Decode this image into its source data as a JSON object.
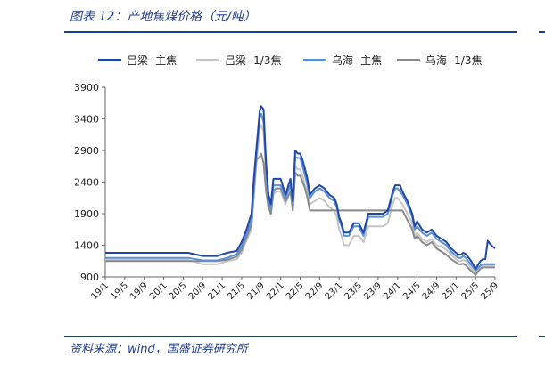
{
  "title": "图表 12：产地焦煤价格（元/吨）",
  "source": "资料来源：wind，国盛证券研究所",
  "chart_data": {
    "type": "line",
    "title": "产地焦煤价格（元/吨）",
    "xlabel": "",
    "ylabel": "",
    "ylim": [
      900,
      3900
    ],
    "yticks": [
      900,
      1400,
      1900,
      2400,
      2900,
      3400,
      3900
    ],
    "xlim": [
      0,
      80
    ],
    "xtick_labels": [
      "19/1",
      "19/5",
      "19/9",
      "20/1",
      "20/5",
      "20/9",
      "21/1",
      "21/5",
      "21/9",
      "22/1",
      "22/5",
      "22/9",
      "23/1",
      "23/5",
      "23/9",
      "24/1",
      "24/5",
      "24/9",
      "25/1",
      "25/5",
      "25/9"
    ],
    "xtick_positions": [
      0,
      4,
      8,
      12,
      16,
      20,
      24,
      28,
      32,
      36,
      40,
      44,
      48,
      52,
      56,
      60,
      64,
      68,
      72,
      76,
      80
    ],
    "grid": false,
    "legend_position": "top",
    "series": [
      {
        "name": "吕梁 -主焦",
        "color": "#1f47a6",
        "x": [
          0,
          5,
          10,
          15,
          17,
          20,
          23,
          25,
          27,
          28,
          29,
          30,
          30.5,
          31,
          31.7,
          32,
          32.5,
          33,
          33.5,
          34,
          34.5,
          35,
          36,
          37,
          38,
          38.5,
          39,
          39.5,
          40,
          40.5,
          41,
          41.5,
          42,
          43,
          44,
          45,
          46,
          47,
          47.5,
          48,
          48.5,
          49,
          50,
          51,
          52,
          53,
          54,
          55,
          56,
          57,
          58,
          59,
          59.5,
          60,
          60.5,
          61,
          62,
          63,
          63.5,
          64,
          65,
          66,
          67,
          68,
          69,
          70,
          71,
          72,
          72.5,
          73,
          73.5,
          74,
          75,
          76,
          77,
          77.5,
          78,
          78.5,
          79,
          79.5,
          80
        ],
        "y": [
          1280,
          1280,
          1280,
          1280,
          1280,
          1230,
          1230,
          1280,
          1310,
          1450,
          1650,
          1900,
          2450,
          2900,
          3530,
          3600,
          3550,
          2700,
          2200,
          2050,
          2450,
          2450,
          2450,
          2200,
          2450,
          2100,
          2900,
          2850,
          2850,
          2750,
          2600,
          2450,
          2200,
          2300,
          2350,
          2300,
          2200,
          2150,
          2050,
          1850,
          1750,
          1600,
          1600,
          1750,
          1750,
          1600,
          1900,
          1900,
          1900,
          1900,
          1950,
          2250,
          2350,
          2350,
          2350,
          2250,
          2100,
          1900,
          1700,
          1780,
          1650,
          1600,
          1650,
          1550,
          1500,
          1450,
          1350,
          1280,
          1250,
          1250,
          1280,
          1260,
          1160,
          1030,
          1150,
          1180,
          1180,
          1470,
          1420,
          1380,
          1350
        ]
      },
      {
        "name": "吕梁 -1/3焦",
        "color": "#c5c5c5",
        "x": [
          0,
          5,
          10,
          15,
          17,
          20,
          23,
          25,
          27,
          28,
          29,
          30,
          30.5,
          31,
          31.7,
          32,
          32.5,
          33,
          33.5,
          34,
          34.5,
          35,
          36,
          37,
          38,
          38.5,
          39,
          39.5,
          40,
          40.5,
          41,
          41.5,
          42,
          43,
          44,
          45,
          46,
          47,
          47.5,
          48,
          48.5,
          49,
          50,
          51,
          52,
          53,
          54,
          55,
          56,
          57,
          58,
          59,
          59.5,
          60,
          60.5,
          61,
          62,
          63,
          63.5,
          64,
          65,
          66,
          67,
          68,
          69,
          70,
          71,
          72,
          72.5,
          73,
          73.5,
          74,
          75,
          76,
          77,
          77.5,
          78,
          78.5,
          79,
          79.5,
          80
        ],
        "y": [
          1170,
          1170,
          1170,
          1170,
          1170,
          1100,
          1100,
          1150,
          1180,
          1280,
          1480,
          1650,
          2150,
          2650,
          3250,
          3300,
          3200,
          2500,
          2050,
          1900,
          2200,
          2250,
          2250,
          2050,
          2250,
          1950,
          2650,
          2600,
          2600,
          2500,
          2350,
          2250,
          2050,
          2100,
          2150,
          2100,
          2000,
          1950,
          1850,
          1650,
          1550,
          1400,
          1400,
          1550,
          1550,
          1450,
          1700,
          1700,
          1700,
          1700,
          1750,
          2050,
          2150,
          2150,
          2100,
          2050,
          1900,
          1750,
          1550,
          1600,
          1500,
          1450,
          1500,
          1400,
          1380,
          1330,
          1250,
          1180,
          1150,
          1150,
          1170,
          1150,
          1050,
          950,
          1050,
          1080,
          1080,
          1080,
          1080,
          1080,
          1080
        ]
      },
      {
        "name": "乌海 -主焦",
        "color": "#5b8fd8",
        "x": [
          0,
          5,
          10,
          15,
          17,
          20,
          23,
          25,
          27,
          28,
          29,
          30,
          30.5,
          31,
          31.7,
          32,
          32.5,
          33,
          33.5,
          34,
          34.5,
          35,
          36,
          37,
          38,
          38.5,
          39,
          39.5,
          40,
          40.5,
          41,
          41.5,
          42,
          43,
          44,
          45,
          46,
          47,
          47.5,
          48,
          48.5,
          49,
          50,
          51,
          52,
          53,
          54,
          55,
          56,
          57,
          58,
          59,
          59.5,
          60,
          60.5,
          61,
          62,
          63,
          63.5,
          64,
          65,
          66,
          67,
          68,
          69,
          70,
          71,
          72,
          72.5,
          73,
          73.5,
          74,
          75,
          76,
          77,
          77.5,
          78,
          78.5,
          79,
          79.5,
          80
        ],
        "y": [
          1200,
          1200,
          1200,
          1200,
          1200,
          1160,
          1160,
          1200,
          1260,
          1380,
          1580,
          1800,
          2350,
          2800,
          3420,
          3480,
          3350,
          2600,
          2100,
          1980,
          2350,
          2350,
          2350,
          2150,
          2350,
          2050,
          2800,
          2780,
          2780,
          2650,
          2500,
          2350,
          2150,
          2250,
          2300,
          2250,
          2150,
          2100,
          2000,
          1800,
          1700,
          1550,
          1550,
          1700,
          1700,
          1550,
          1850,
          1850,
          1850,
          1850,
          1900,
          2200,
          2300,
          2300,
          2250,
          2200,
          2050,
          1850,
          1650,
          1700,
          1600,
          1550,
          1600,
          1500,
          1450,
          1400,
          1300,
          1230,
          1200,
          1200,
          1230,
          1200,
          1100,
          1000,
          1080,
          1100,
          1100,
          1100,
          1100,
          1100,
          1100
        ]
      },
      {
        "name": "乌海 -1/3焦",
        "color": "#8a8a8a",
        "x": [
          0,
          5,
          10,
          15,
          17,
          20,
          23,
          25,
          27,
          28,
          29,
          30,
          30.5,
          31,
          31.7,
          32,
          32.5,
          33,
          33.5,
          34,
          34.5,
          35,
          36,
          37,
          38,
          38.5,
          39,
          39.5,
          40,
          40.5,
          41,
          41.5,
          42,
          43,
          44,
          45,
          46,
          47,
          47.5,
          48,
          48.5,
          49,
          50,
          51,
          52,
          53,
          54,
          55,
          56,
          57,
          58,
          59,
          59.5,
          60,
          60.5,
          61,
          62,
          63,
          63.5,
          64,
          65,
          66,
          67,
          68,
          69,
          70,
          71,
          72,
          72.5,
          73,
          73.5,
          74,
          75,
          76,
          77,
          77.5,
          78,
          78.5,
          79,
          79.5,
          80
        ],
        "y": [
          1150,
          1150,
          1150,
          1150,
          1150,
          1150,
          1150,
          1170,
          1220,
          1330,
          1520,
          1720,
          2250,
          2750,
          2800,
          2850,
          2700,
          2250,
          2000,
          1900,
          2250,
          2300,
          2300,
          2100,
          2250,
          1950,
          2550,
          2500,
          2500,
          2400,
          2300,
          2150,
          1950,
          1950,
          1950,
          1950,
          1950,
          1950,
          1950,
          1950,
          1950,
          1950,
          1950,
          1950,
          1950,
          1950,
          1950,
          1950,
          1950,
          1950,
          1950,
          1950,
          1950,
          1950,
          1950,
          1950,
          1800,
          1650,
          1500,
          1550,
          1450,
          1400,
          1450,
          1350,
          1300,
          1250,
          1180,
          1130,
          1100,
          1100,
          1110,
          1080,
          1000,
          930,
          1030,
          1050,
          1050,
          1050,
          1050,
          1050,
          1050
        ]
      }
    ]
  }
}
